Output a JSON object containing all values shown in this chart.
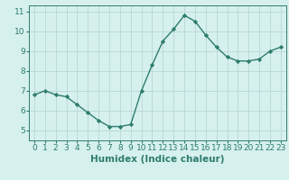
{
  "title": "",
  "xlabel": "Humidex (Indice chaleur)",
  "ylabel": "",
  "x": [
    0,
    1,
    2,
    3,
    4,
    5,
    6,
    7,
    8,
    9,
    10,
    11,
    12,
    13,
    14,
    15,
    16,
    17,
    18,
    19,
    20,
    21,
    22,
    23
  ],
  "y": [
    6.8,
    7.0,
    6.8,
    6.7,
    6.3,
    5.9,
    5.5,
    5.2,
    5.2,
    5.3,
    7.0,
    8.3,
    9.5,
    10.1,
    10.8,
    10.5,
    9.8,
    9.2,
    8.7,
    8.5,
    8.5,
    8.6,
    9.0,
    9.2
  ],
  "line_color": "#2e7d6e",
  "marker": "D",
  "marker_size": 2.2,
  "bg_color": "#d6f0ee",
  "grid_color": "#b8d8d4",
  "ylim": [
    4.5,
    11.3
  ],
  "xlim": [
    -0.5,
    23.5
  ],
  "yticks": [
    5,
    6,
    7,
    8,
    9,
    10,
    11
  ],
  "xticks": [
    0,
    1,
    2,
    3,
    4,
    5,
    6,
    7,
    8,
    9,
    10,
    11,
    12,
    13,
    14,
    15,
    16,
    17,
    18,
    19,
    20,
    21,
    22,
    23
  ],
  "xlabel_fontsize": 7.5,
  "tick_fontsize": 6.5,
  "spine_color": "#2e7d6e",
  "linewidth": 1.0
}
